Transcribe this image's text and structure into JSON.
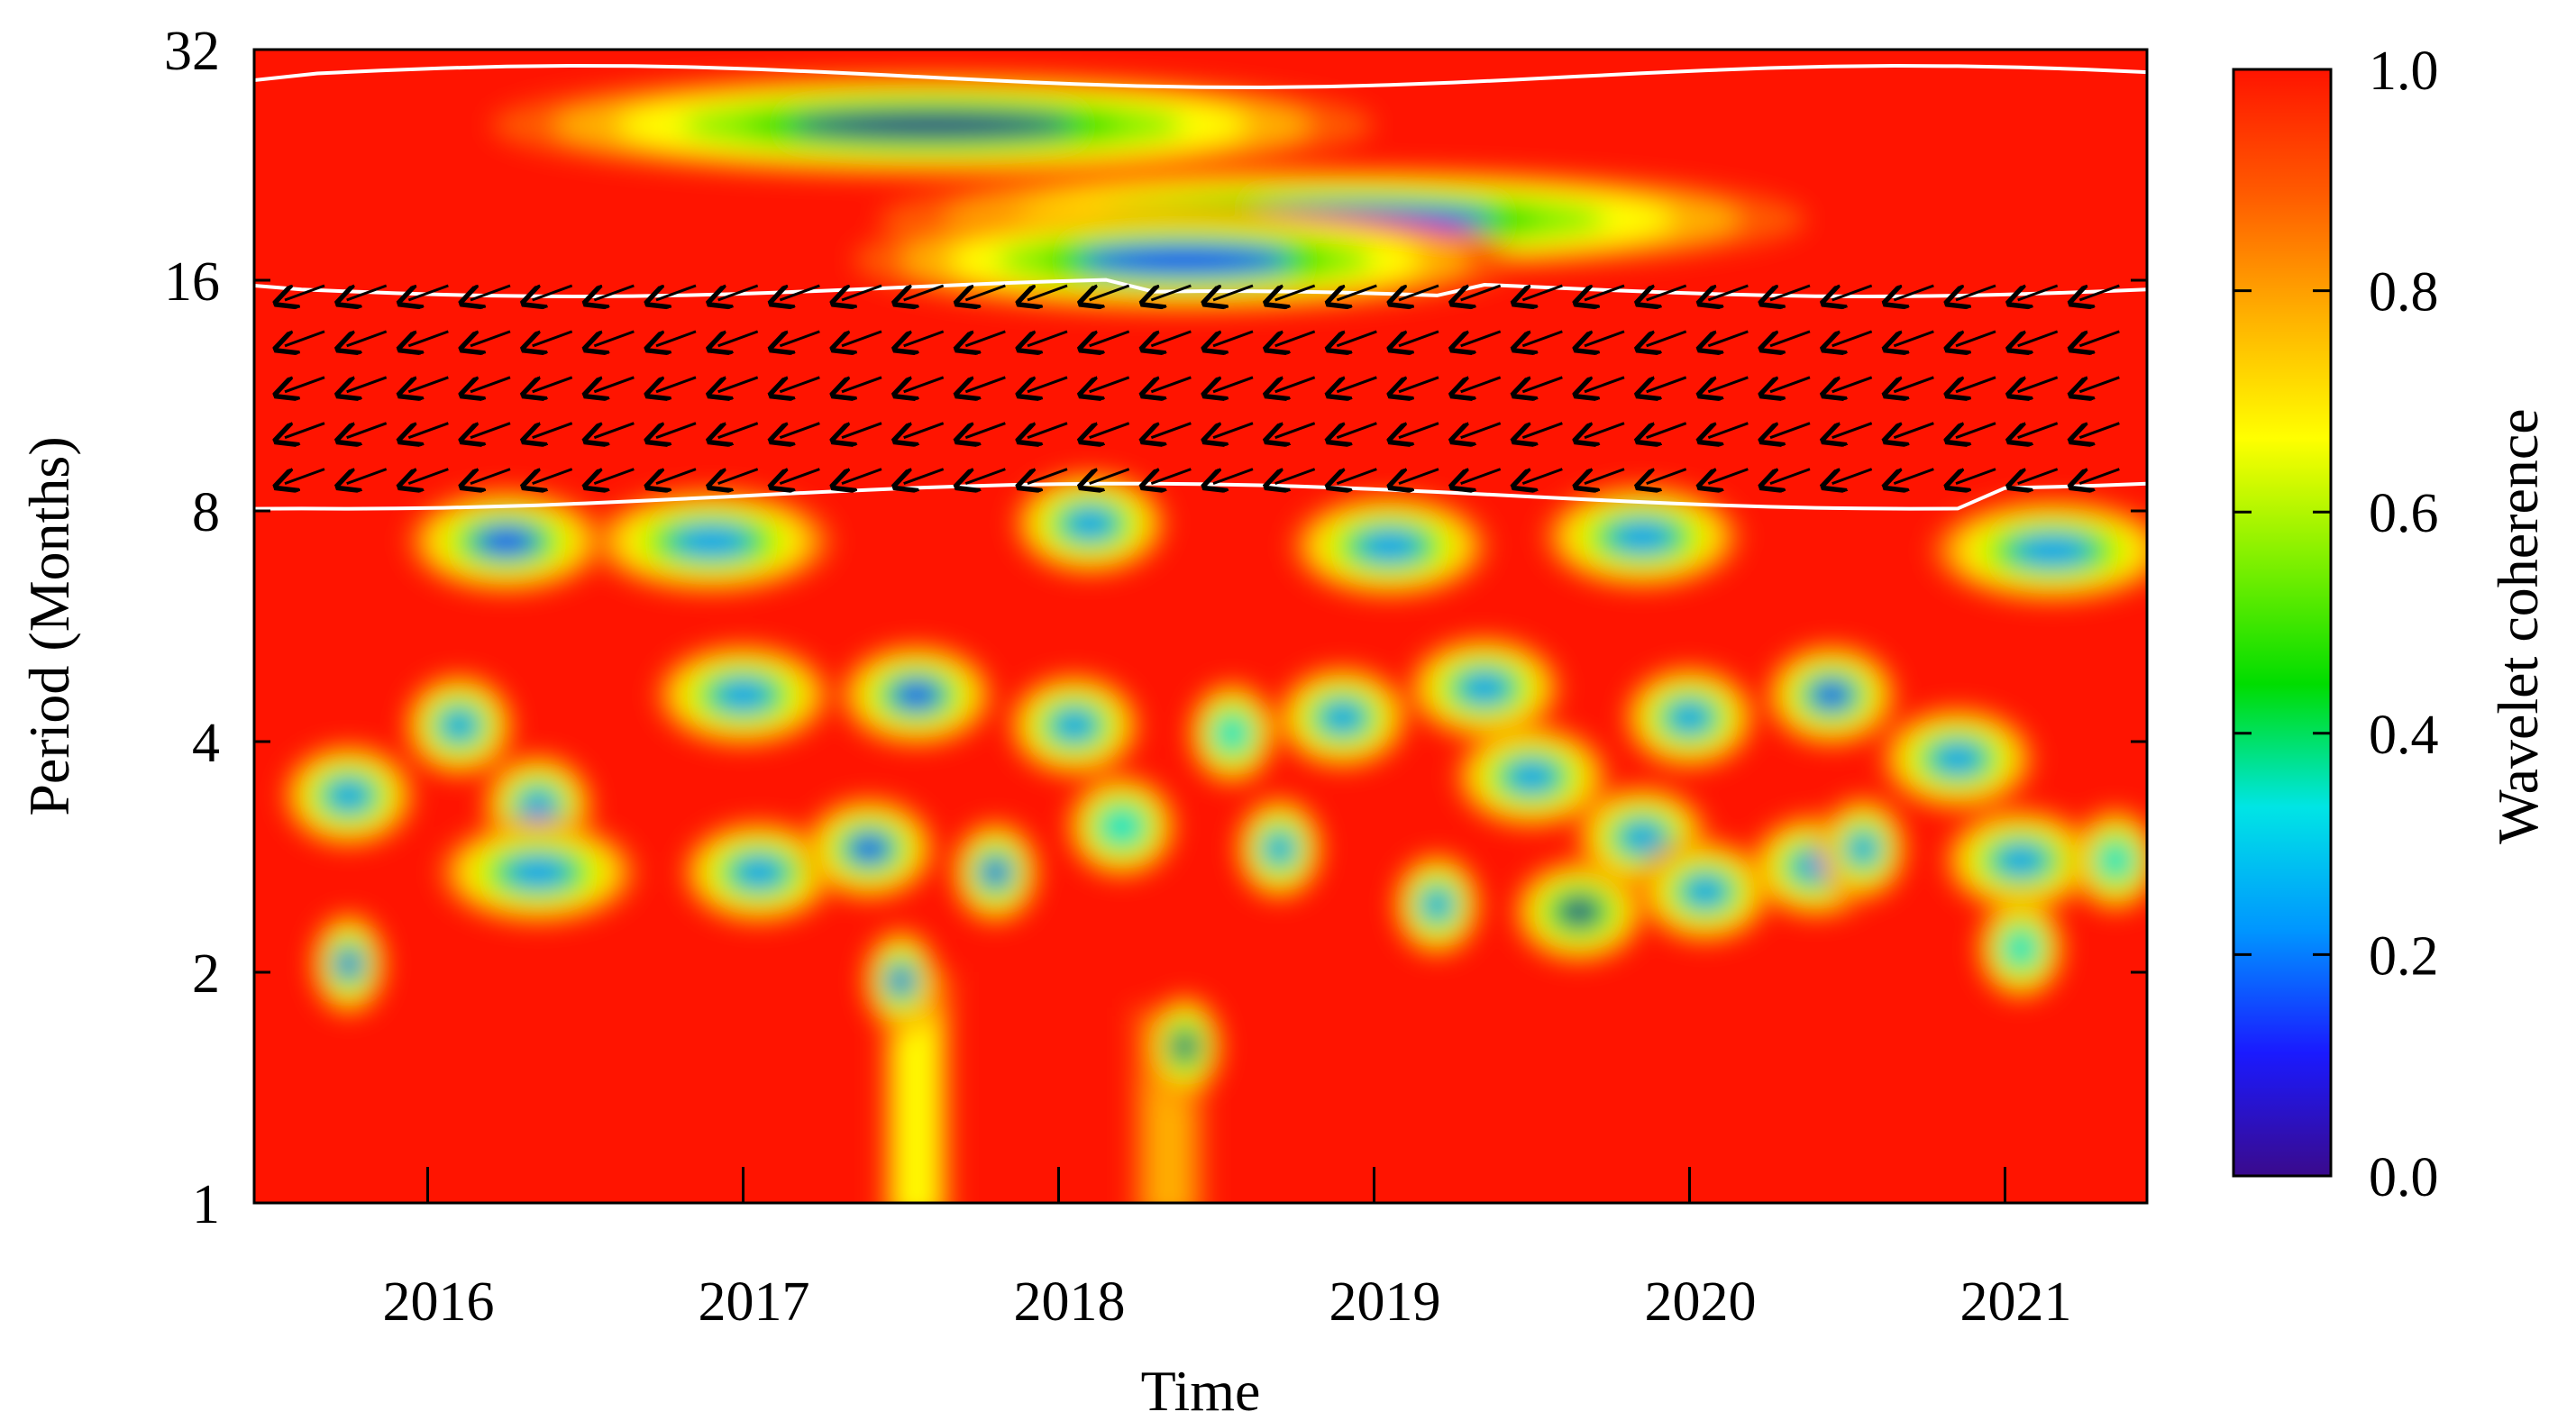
{
  "chart_data": {
    "type": "heatmap",
    "title": "",
    "xlabel": "Time",
    "ylabel": "Period (Months)",
    "colorbar_label": "Wavelet coherence",
    "x_ticks": [
      "2016",
      "2017",
      "2018",
      "2019",
      "2020",
      "2021"
    ],
    "x_tick_values": [
      2016,
      2017,
      2018,
      2019,
      2020,
      2021
    ],
    "xlim": [
      2015.45,
      2021.45
    ],
    "y_ticks": [
      "1",
      "2",
      "4",
      "8",
      "16",
      "32"
    ],
    "y_tick_values": [
      1,
      2,
      4,
      8,
      16,
      32
    ],
    "ylim": [
      1,
      32
    ],
    "y_scale": "log2",
    "colorbar_ticks": [
      "0.0",
      "0.2",
      "0.4",
      "0.6",
      "0.8",
      "1.0"
    ],
    "colorbar_tick_values": [
      0.0,
      0.2,
      0.4,
      0.6,
      0.8,
      1.0
    ],
    "color_scale": [
      "#3a0a8c",
      "#1a1aff",
      "#0096ff",
      "#00e5e5",
      "#00dd00",
      "#7ff000",
      "#ffff00",
      "#ffb000",
      "#ff5a00",
      "#ff1400"
    ],
    "background_coherence": 1.0,
    "significant_band": {
      "period_min": 8.5,
      "period_max": 16,
      "phase_arrow_direction": "down-left"
    },
    "low_coherence_patches": [
      {
        "time": 2017.6,
        "period": 25.5,
        "coherence": 0.05,
        "time_extent": 2.0
      },
      {
        "time": 2018.9,
        "period": 19.2,
        "coherence": 0.15,
        "time_extent": 2.1
      },
      {
        "time": 2018.4,
        "period": 17.0,
        "coherence": 0.1,
        "time_extent": 1.5
      },
      {
        "time": 2016.25,
        "period": 7.3,
        "coherence": 0.15,
        "time_extent": 0.45
      },
      {
        "time": 2016.9,
        "period": 7.3,
        "coherence": 0.2,
        "time_extent": 0.55
      },
      {
        "time": 2018.1,
        "period": 7.7,
        "coherence": 0.2,
        "time_extent": 0.35
      },
      {
        "time": 2019.05,
        "period": 7.2,
        "coherence": 0.2,
        "time_extent": 0.45
      },
      {
        "time": 2019.85,
        "period": 7.4,
        "coherence": 0.2,
        "time_extent": 0.45
      },
      {
        "time": 2021.15,
        "period": 7.1,
        "coherence": 0.2,
        "time_extent": 0.55
      },
      {
        "time": 2015.75,
        "period": 3.4,
        "coherence": 0.2,
        "time_extent": 0.3
      },
      {
        "time": 2016.1,
        "period": 4.2,
        "coherence": 0.2,
        "time_extent": 0.25
      },
      {
        "time": 2016.35,
        "period": 3.3,
        "coherence": 0.2,
        "time_extent": 0.25
      },
      {
        "time": 2016.35,
        "period": 2.7,
        "coherence": 0.2,
        "time_extent": 0.45
      },
      {
        "time": 2015.75,
        "period": 2.05,
        "coherence": 0.1,
        "time_extent": 0.12
      },
      {
        "time": 2017.0,
        "period": 4.6,
        "coherence": 0.2,
        "time_extent": 0.4
      },
      {
        "time": 2017.05,
        "period": 2.7,
        "coherence": 0.2,
        "time_extent": 0.35
      },
      {
        "time": 2017.4,
        "period": 2.9,
        "coherence": 0.15,
        "time_extent": 0.3
      },
      {
        "time": 2017.55,
        "period": 4.6,
        "coherence": 0.15,
        "time_extent": 0.35
      },
      {
        "time": 2017.5,
        "period": 1.95,
        "coherence": 0.1,
        "time_extent": 0.15
      },
      {
        "time": 2017.8,
        "period": 2.7,
        "coherence": 0.15,
        "time_extent": 0.2
      },
      {
        "time": 2018.05,
        "period": 4.2,
        "coherence": 0.2,
        "time_extent": 0.3
      },
      {
        "time": 2018.2,
        "period": 3.1,
        "coherence": 0.3,
        "time_extent": 0.25
      },
      {
        "time": 2018.4,
        "period": 1.6,
        "coherence": 0.05,
        "time_extent": 0.12
      },
      {
        "time": 2018.55,
        "period": 4.1,
        "coherence": 0.3,
        "time_extent": 0.2
      },
      {
        "time": 2018.7,
        "period": 2.9,
        "coherence": 0.2,
        "time_extent": 0.2
      },
      {
        "time": 2018.9,
        "period": 4.3,
        "coherence": 0.2,
        "time_extent": 0.3
      },
      {
        "time": 2019.2,
        "period": 2.45,
        "coherence": 0.2,
        "time_extent": 0.2
      },
      {
        "time": 2019.35,
        "period": 4.7,
        "coherence": 0.2,
        "time_extent": 0.35
      },
      {
        "time": 2019.5,
        "period": 3.6,
        "coherence": 0.2,
        "time_extent": 0.35
      },
      {
        "time": 2019.65,
        "period": 2.4,
        "coherence": 0.05,
        "time_extent": 0.3
      },
      {
        "time": 2019.85,
        "period": 3.0,
        "coherence": 0.2,
        "time_extent": 0.3
      },
      {
        "time": 2020.0,
        "period": 4.3,
        "coherence": 0.2,
        "time_extent": 0.3
      },
      {
        "time": 2020.05,
        "period": 2.55,
        "coherence": 0.2,
        "time_extent": 0.3
      },
      {
        "time": 2020.4,
        "period": 2.75,
        "coherence": 0.2,
        "time_extent": 0.3
      },
      {
        "time": 2020.45,
        "period": 4.6,
        "coherence": 0.15,
        "time_extent": 0.3
      },
      {
        "time": 2020.55,
        "period": 2.9,
        "coherence": 0.2,
        "time_extent": 0.2
      },
      {
        "time": 2020.85,
        "period": 3.8,
        "coherence": 0.2,
        "time_extent": 0.35
      },
      {
        "time": 2021.05,
        "period": 2.8,
        "coherence": 0.2,
        "time_extent": 0.35
      },
      {
        "time": 2021.05,
        "period": 2.15,
        "coherence": 0.3,
        "time_extent": 0.2
      },
      {
        "time": 2021.35,
        "period": 2.8,
        "coherence": 0.3,
        "time_extent": 0.2
      }
    ],
    "coherence_streaks": [
      {
        "time": 2017.55,
        "period_min": 1.0,
        "period_max": 2.0,
        "coherence": 0.7
      },
      {
        "time": 2018.35,
        "period_min": 1.0,
        "period_max": 1.8,
        "coherence": 0.75
      }
    ],
    "grid": false,
    "legend": "colorbar-right"
  }
}
